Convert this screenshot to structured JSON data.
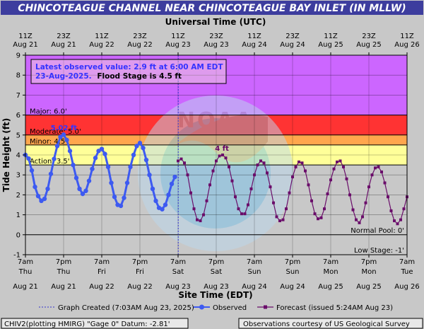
{
  "chart_data": {
    "type": "line",
    "title": "CHINCOTEAGUE CHANNEL NEAR CHINCOTEAGUE BAY INLET (IN MLLW)",
    "top_axis_title": "Universal Time (UTC)",
    "xlabel": "Site Time (EDT)",
    "ylabel": "Tide Height (ft)",
    "ylim": [
      -1,
      9
    ],
    "y_ticks": [
      "-1",
      "0",
      "1",
      "2",
      "3",
      "4",
      "5",
      "6",
      "7",
      "8",
      "9"
    ],
    "x_range_hours": [
      0,
      120
    ],
    "bottom_ticks": [
      {
        "line1": "7am",
        "line2": "Thu",
        "line3": "Aug 21"
      },
      {
        "line1": "7pm",
        "line2": "Thu",
        "line3": "Aug 21"
      },
      {
        "line1": "7am",
        "line2": "Fri",
        "line3": "Aug 22"
      },
      {
        "line1": "7pm",
        "line2": "Fri",
        "line3": "Aug 22"
      },
      {
        "line1": "7am",
        "line2": "Sat",
        "line3": "Aug 23"
      },
      {
        "line1": "7pm",
        "line2": "Sat",
        "line3": "Aug 23"
      },
      {
        "line1": "7am",
        "line2": "Sun",
        "line3": "Aug 24"
      },
      {
        "line1": "7pm",
        "line2": "Sun",
        "line3": "Aug 24"
      },
      {
        "line1": "7am",
        "line2": "Mon",
        "line3": "Aug 25"
      },
      {
        "line1": "7pm",
        "line2": "Mon",
        "line3": "Aug 25"
      },
      {
        "line1": "7am",
        "line2": "Tue",
        "line3": "Aug 26"
      }
    ],
    "top_ticks": [
      {
        "line1": "11Z",
        "line2": "Aug 21"
      },
      {
        "line1": "23Z",
        "line2": "Aug 21"
      },
      {
        "line1": "11Z",
        "line2": "Aug 22"
      },
      {
        "line1": "23Z",
        "line2": "Aug 22"
      },
      {
        "line1": "11Z",
        "line2": "Aug 23"
      },
      {
        "line1": "23Z",
        "line2": "Aug 23"
      },
      {
        "line1": "11Z",
        "line2": "Aug 24"
      },
      {
        "line1": "23Z",
        "line2": "Aug 24"
      },
      {
        "line1": "11Z",
        "line2": "Aug 25"
      },
      {
        "line1": "23Z",
        "line2": "Aug 25"
      },
      {
        "line1": "11Z",
        "line2": "Aug 26"
      }
    ],
    "flood_bands": [
      {
        "from": 6.0,
        "to": 9.0,
        "color": "#cc66ff",
        "label": "Major: 6.0'"
      },
      {
        "from": 5.0,
        "to": 6.0,
        "color": "#ff3333",
        "label": "Moderate: 5.0'"
      },
      {
        "from": 4.5,
        "to": 5.0,
        "color": "#ffa64d",
        "label": "Minor: 4.5'"
      },
      {
        "from": 3.5,
        "to": 4.5,
        "color": "#ffff99",
        "label": "Action: 3.5'"
      }
    ],
    "reference_lines": [
      {
        "y": 0,
        "label": "Normal Pool: 0'"
      },
      {
        "y": -1,
        "label": "Low Stage: -1'"
      }
    ],
    "info_box": {
      "line1": "Latest observed value: 2.9 ft at 6:00 AM EDT",
      "line2_date": "23-Aug-2025.",
      "line2_flood": "Flood Stage is 4.5 ft"
    },
    "annotations": [
      {
        "text": "5.02 ft",
        "x": 12.1,
        "y": 5.02,
        "color": "#3333ff"
      },
      {
        "text": "4 ft",
        "x": 61.8,
        "y": 4.0,
        "color": "#660066"
      }
    ],
    "created_hour": 48.05,
    "series": [
      {
        "name": "Observed",
        "color": "#3d5af1",
        "points": [
          [
            0.0,
            4.0
          ],
          [
            1.0,
            3.82
          ],
          [
            2.0,
            3.22
          ],
          [
            3.0,
            2.4
          ],
          [
            4.0,
            1.94
          ],
          [
            5.0,
            1.7
          ],
          [
            6.0,
            1.8
          ],
          [
            7.0,
            2.3
          ],
          [
            8.0,
            3.05
          ],
          [
            9.0,
            3.8
          ],
          [
            10.0,
            4.45
          ],
          [
            11.0,
            4.9
          ],
          [
            12.0,
            5.02
          ],
          [
            13.0,
            4.75
          ],
          [
            14.0,
            4.2
          ],
          [
            15.0,
            3.5
          ],
          [
            16.0,
            2.85
          ],
          [
            17.0,
            2.3
          ],
          [
            18.0,
            2.05
          ],
          [
            19.0,
            2.2
          ],
          [
            20.0,
            2.7
          ],
          [
            21.0,
            3.3
          ],
          [
            22.0,
            3.85
          ],
          [
            23.0,
            4.2
          ],
          [
            24.0,
            4.3
          ],
          [
            25.0,
            4.05
          ],
          [
            26.0,
            3.4
          ],
          [
            27.0,
            2.6
          ],
          [
            28.0,
            1.9
          ],
          [
            29.0,
            1.5
          ],
          [
            30.0,
            1.45
          ],
          [
            31.0,
            1.85
          ],
          [
            32.0,
            2.6
          ],
          [
            33.0,
            3.4
          ],
          [
            34.0,
            4.0
          ],
          [
            35.0,
            4.45
          ],
          [
            36.0,
            4.6
          ],
          [
            37.0,
            4.35
          ],
          [
            38.0,
            3.75
          ],
          [
            39.0,
            3.0
          ],
          [
            40.0,
            2.3
          ],
          [
            41.0,
            1.7
          ],
          [
            42.0,
            1.35
          ],
          [
            43.0,
            1.28
          ],
          [
            44.0,
            1.5
          ],
          [
            45.0,
            2.0
          ],
          [
            46.0,
            2.55
          ],
          [
            47.0,
            2.9
          ]
        ]
      },
      {
        "name": "Forecast (issued 5:24AM Aug 23)",
        "color": "#6a0d6a",
        "points": [
          [
            48.0,
            3.7
          ],
          [
            49.0,
            3.8
          ],
          [
            50.0,
            3.6
          ],
          [
            51.0,
            3.0
          ],
          [
            52.0,
            2.1
          ],
          [
            53.0,
            1.3
          ],
          [
            54.0,
            0.75
          ],
          [
            55.0,
            0.7
          ],
          [
            56.0,
            1.0
          ],
          [
            57.0,
            1.7
          ],
          [
            58.0,
            2.5
          ],
          [
            59.0,
            3.2
          ],
          [
            60.0,
            3.7
          ],
          [
            61.0,
            3.95
          ],
          [
            62.0,
            4.0
          ],
          [
            63.0,
            3.85
          ],
          [
            64.0,
            3.4
          ],
          [
            65.0,
            2.7
          ],
          [
            66.0,
            1.9
          ],
          [
            67.0,
            1.3
          ],
          [
            68.0,
            1.05
          ],
          [
            69.0,
            1.05
          ],
          [
            70.0,
            1.5
          ],
          [
            71.0,
            2.3
          ],
          [
            72.0,
            3.0
          ],
          [
            73.0,
            3.5
          ],
          [
            74.0,
            3.7
          ],
          [
            75.0,
            3.6
          ],
          [
            76.0,
            3.1
          ],
          [
            77.0,
            2.4
          ],
          [
            78.0,
            1.6
          ],
          [
            79.0,
            0.9
          ],
          [
            80.0,
            0.7
          ],
          [
            81.0,
            0.75
          ],
          [
            82.0,
            1.3
          ],
          [
            83.0,
            2.1
          ],
          [
            84.0,
            2.9
          ],
          [
            85.0,
            3.4
          ],
          [
            86.0,
            3.65
          ],
          [
            87.0,
            3.6
          ],
          [
            88.0,
            3.2
          ],
          [
            89.0,
            2.5
          ],
          [
            90.0,
            1.7
          ],
          [
            91.0,
            1.05
          ],
          [
            92.0,
            0.8
          ],
          [
            93.0,
            0.85
          ],
          [
            94.0,
            1.3
          ],
          [
            95.0,
            2.05
          ],
          [
            96.0,
            2.75
          ],
          [
            97.0,
            3.3
          ],
          [
            98.0,
            3.65
          ],
          [
            99.0,
            3.7
          ],
          [
            100.0,
            3.4
          ],
          [
            101.0,
            2.8
          ],
          [
            102.0,
            2.0
          ],
          [
            103.0,
            1.25
          ],
          [
            104.0,
            0.75
          ],
          [
            105.0,
            0.6
          ],
          [
            106.0,
            0.9
          ],
          [
            107.0,
            1.6
          ],
          [
            108.0,
            2.4
          ],
          [
            109.0,
            3.0
          ],
          [
            110.0,
            3.35
          ],
          [
            111.0,
            3.4
          ],
          [
            112.0,
            3.15
          ],
          [
            113.0,
            2.6
          ],
          [
            114.0,
            1.9
          ],
          [
            115.0,
            1.2
          ],
          [
            116.0,
            0.7
          ],
          [
            117.0,
            0.55
          ],
          [
            118.0,
            0.75
          ],
          [
            119.0,
            1.3
          ],
          [
            120.0,
            1.9
          ]
        ]
      }
    ],
    "legend": {
      "created": "Graph Created (7:03AM Aug 23, 2025)",
      "observed": "Observed",
      "forecast": "Forecast (issued 5:24AM Aug 23)"
    },
    "footer_left": "CHIV2(plotting HMIRG) \"Gage 0\" Datum: -2.81'",
    "footer_right": "Observations courtesy of US Geological Survey",
    "colors": {
      "background": "#c8c8c8",
      "title_bar": "#3d3d9e",
      "plot_background": "#ffffff",
      "observed": "#3d5af1",
      "forecast": "#6a0d6a",
      "info_text": "#3333ff"
    }
  }
}
